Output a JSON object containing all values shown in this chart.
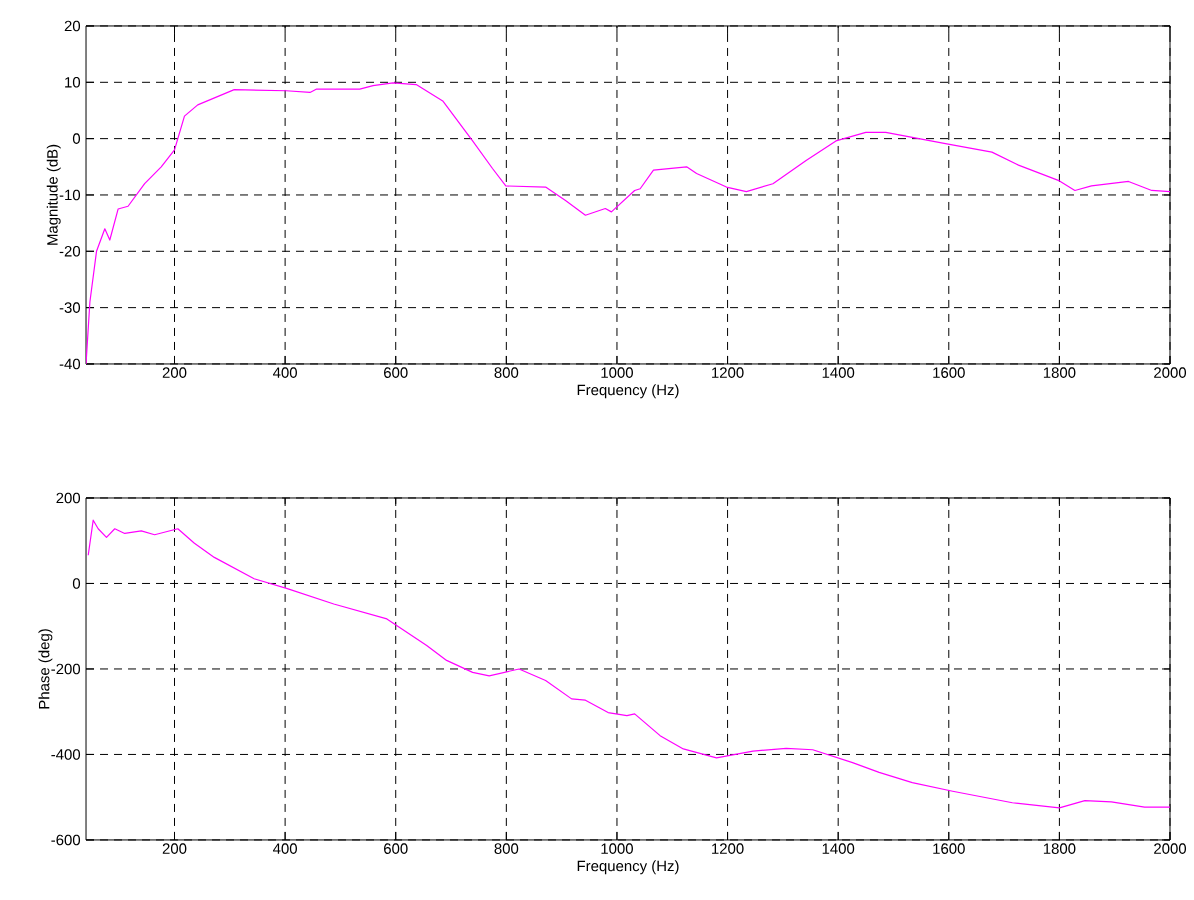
{
  "chart_data": [
    {
      "type": "line",
      "xlabel": "Frequency (Hz)",
      "ylabel": "Magnitude (dB)",
      "xlim": [
        40,
        2000
      ],
      "ylim": [
        -40,
        20
      ],
      "xticks": [
        200,
        400,
        600,
        800,
        1000,
        1200,
        1400,
        1600,
        1800,
        2000
      ],
      "yticks": [
        -40,
        -30,
        -20,
        -10,
        0,
        10,
        20
      ],
      "grid": true,
      "line_style": "solid",
      "x": [
        40,
        47,
        59,
        74,
        83,
        98,
        116,
        146,
        176,
        200,
        218,
        242,
        308,
        402,
        445,
        457,
        535,
        559,
        595,
        637,
        685,
        739,
        775,
        799,
        871,
        907,
        943,
        979,
        990,
        1032,
        1042,
        1066,
        1126,
        1144,
        1198,
        1234,
        1282,
        1342,
        1396,
        1450,
        1486,
        1594,
        1678,
        1726,
        1798,
        1828,
        1858,
        1925,
        1967,
        2000
      ],
      "series": [
        {
          "color": "#ff00ff",
          "values": [
            -40,
            -29,
            -20,
            -16,
            -18,
            -12.5,
            -12,
            -8,
            -5,
            -2,
            4,
            6,
            8.7,
            8.5,
            8.2,
            8.8,
            8.8,
            9.4,
            9.9,
            9.6,
            6.7,
            -0.4,
            -5.3,
            -8.4,
            -8.6,
            -11,
            -13.6,
            -12.4,
            -13,
            -9.2,
            -8.9,
            -5.6,
            -5,
            -6.2,
            -8.6,
            -9.4,
            -8,
            -3.9,
            -0.4,
            1.1,
            1.1,
            -0.9,
            -2.4,
            -4.7,
            -7.4,
            -9.2,
            -8.4,
            -7.6,
            -9.2,
            -9.4
          ]
        }
      ]
    },
    {
      "type": "line",
      "xlabel": "Frequency (Hz)",
      "ylabel": "Phase (deg)",
      "xlim": [
        40,
        2000
      ],
      "ylim": [
        -600,
        200
      ],
      "xticks": [
        200,
        400,
        600,
        800,
        1000,
        1200,
        1400,
        1600,
        1800,
        2000
      ],
      "yticks": [
        -600,
        -400,
        -200,
        0,
        200
      ],
      "grid": true,
      "line_style": "solid",
      "x": [
        44,
        53,
        62,
        77,
        92,
        110,
        140,
        164,
        206,
        236,
        272,
        344,
        404,
        488,
        584,
        656,
        692,
        739,
        769,
        823,
        871,
        918,
        943,
        984,
        1018,
        1032,
        1078,
        1120,
        1180,
        1246,
        1306,
        1354,
        1426,
        1474,
        1534,
        1607,
        1715,
        1800,
        1846,
        1894,
        1954,
        2000
      ],
      "series": [
        {
          "color": "#ff00ff",
          "values": [
            66,
            148,
            128,
            108,
            128,
            117,
            123,
            114,
            128,
            94,
            61,
            11,
            -12,
            -48,
            -83,
            -145,
            -180,
            -208,
            -216,
            -200,
            -227,
            -270,
            -273,
            -302,
            -309,
            -305,
            -356,
            -387,
            -408,
            -392,
            -386,
            -389,
            -419,
            -442,
            -466,
            -486,
            -513,
            -525,
            -508,
            -511,
            -523,
            -523
          ]
        }
      ]
    }
  ]
}
